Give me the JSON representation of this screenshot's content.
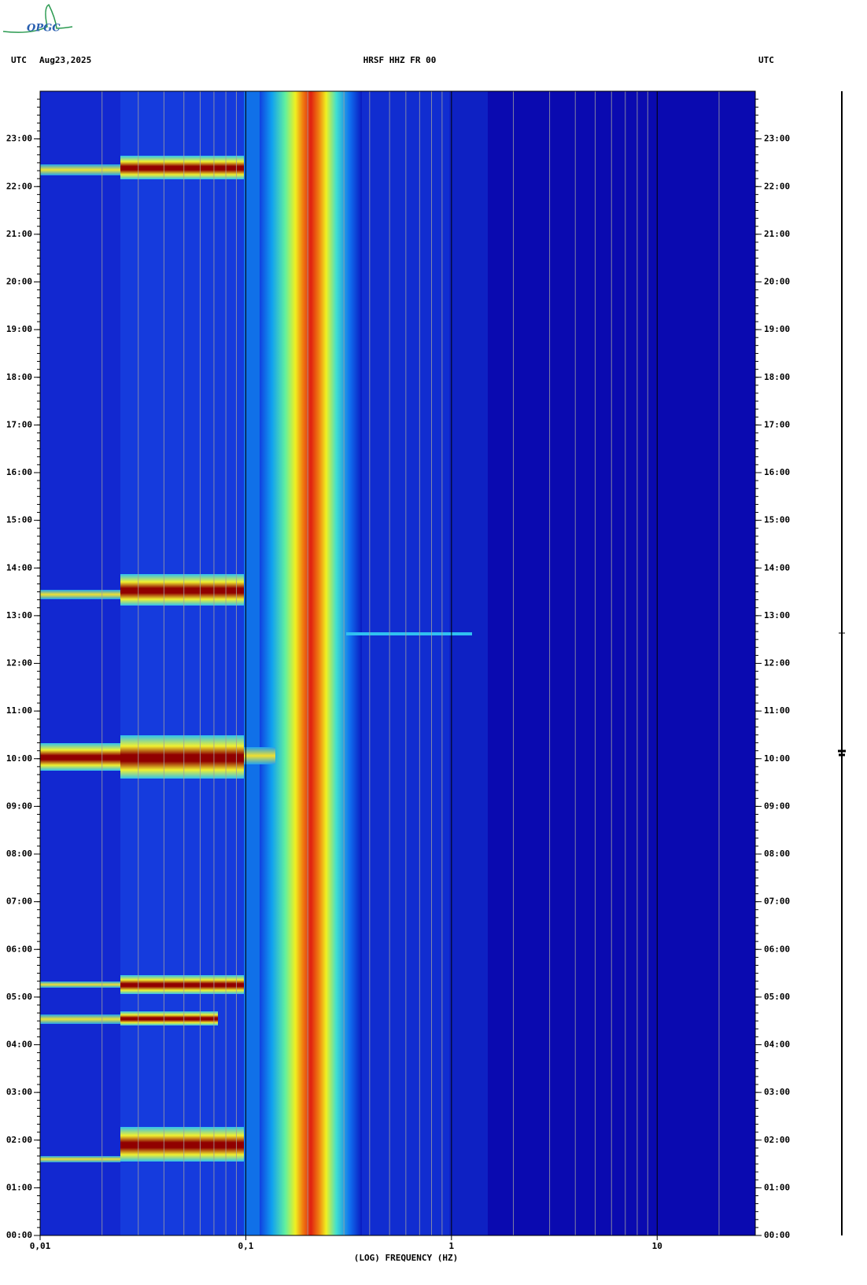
{
  "logo": "OPGC",
  "chart_data": {
    "type": "spectrogram",
    "header_left": "UTC",
    "date": "Aug23,2025",
    "title": "HRSF HHZ FR 00",
    "header_right": "UTC",
    "x_label": "(LOG) FREQUENCY (HZ)",
    "x_log": true,
    "xlim": [
      0.01,
      30
    ],
    "xticks": [
      {
        "value": 0.01,
        "label": "0,01"
      },
      {
        "value": 0.1,
        "label": "0,1"
      },
      {
        "value": 1,
        "label": "1"
      },
      {
        "value": 10,
        "label": "10"
      }
    ],
    "ylim": [
      0,
      24
    ],
    "yticks": [
      {
        "value": 0,
        "label": "00:00"
      },
      {
        "value": 1,
        "label": "01:00"
      },
      {
        "value": 2,
        "label": "02:00"
      },
      {
        "value": 3,
        "label": "03:00"
      },
      {
        "value": 4,
        "label": "04:00"
      },
      {
        "value": 5,
        "label": "05:00"
      },
      {
        "value": 6,
        "label": "06:00"
      },
      {
        "value": 7,
        "label": "07:00"
      },
      {
        "value": 8,
        "label": "08:00"
      },
      {
        "value": 9,
        "label": "09:00"
      },
      {
        "value": 10,
        "label": "10:00"
      },
      {
        "value": 11,
        "label": "11:00"
      },
      {
        "value": 12,
        "label": "12:00"
      },
      {
        "value": 13,
        "label": "13:00"
      },
      {
        "value": 14,
        "label": "14:00"
      },
      {
        "value": 15,
        "label": "15:00"
      },
      {
        "value": 16,
        "label": "16:00"
      },
      {
        "value": 17,
        "label": "17:00"
      },
      {
        "value": 18,
        "label": "18:00"
      },
      {
        "value": 19,
        "label": "19:00"
      },
      {
        "value": 20,
        "label": "20:00"
      },
      {
        "value": 21,
        "label": "21:00"
      },
      {
        "value": 22,
        "label": "22:00"
      },
      {
        "value": 23,
        "label": "23:00"
      }
    ]
  }
}
